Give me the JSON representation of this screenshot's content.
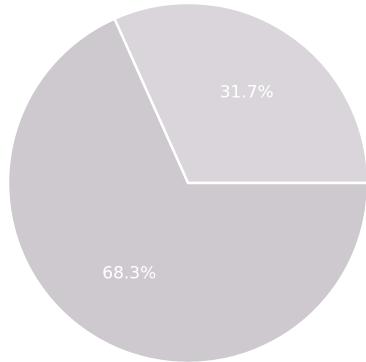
{
  "chart_data": {
    "type": "pie",
    "values": [
      31.7,
      68.3
    ],
    "value_labels": [
      "31.7%",
      "68.3%"
    ],
    "colors": [
      "#d9d5da",
      "#cdc9ce"
    ]
  }
}
